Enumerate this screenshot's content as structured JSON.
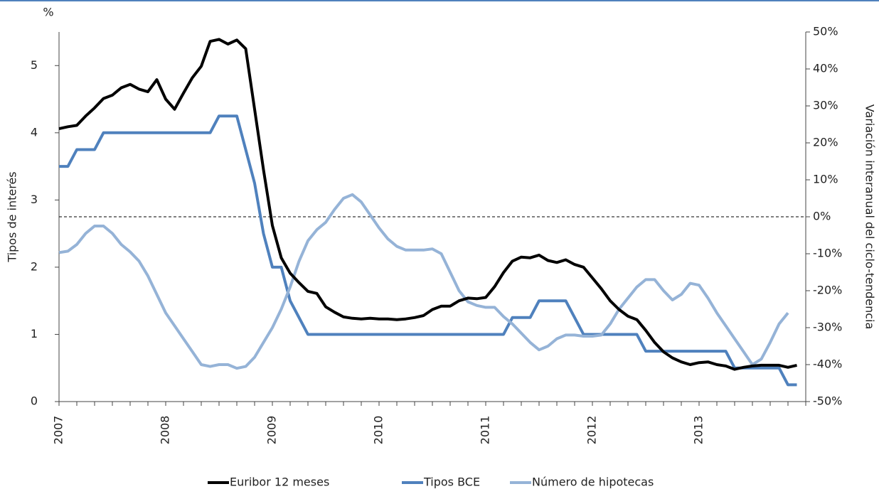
{
  "chart_data": {
    "type": "line",
    "y_unit": "%",
    "y_label": "Tipos de interés",
    "y2_label": "Variación interanual del ciclo-tendencia",
    "categories": [
      "2007",
      null,
      null,
      null,
      null,
      null,
      null,
      null,
      null,
      null,
      null,
      null,
      "2008",
      null,
      null,
      null,
      null,
      null,
      null,
      null,
      null,
      null,
      null,
      null,
      "2009",
      null,
      null,
      null,
      null,
      null,
      null,
      null,
      null,
      null,
      null,
      null,
      "2010",
      null,
      null,
      null,
      null,
      null,
      null,
      null,
      null,
      null,
      null,
      null,
      "2011",
      null,
      null,
      null,
      null,
      null,
      null,
      null,
      null,
      null,
      null,
      null,
      "2012",
      null,
      null,
      null,
      null,
      null,
      null,
      null,
      null,
      null,
      null,
      null,
      "2013",
      null,
      null,
      null,
      null,
      null,
      null,
      null,
      null,
      null,
      null,
      null
    ],
    "ylim": [
      0,
      5.5
    ],
    "yticks": [
      0,
      1,
      2,
      3,
      4,
      5
    ],
    "y2lim": [
      -50,
      50
    ],
    "y2ticks": [
      {
        "value": -50,
        "label": "-50%"
      },
      {
        "value": -40,
        "label": "-40%"
      },
      {
        "value": -30,
        "label": "-30%"
      },
      {
        "value": -20,
        "label": "-20%"
      },
      {
        "value": -10,
        "label": "-10%"
      },
      {
        "value": 0,
        "label": "0%"
      },
      {
        "value": 10,
        "label": "10%"
      },
      {
        "value": 20,
        "label": "20%"
      },
      {
        "value": 30,
        "label": "30%"
      },
      {
        "value": 40,
        "label": "40%"
      },
      {
        "value": 50,
        "label": "50%"
      }
    ],
    "reference_line": {
      "axis": "y2",
      "value": 0
    },
    "series": [
      {
        "name": "Euribor 12 meses",
        "color": "#000000",
        "values": [
          4.06,
          4.09,
          4.11,
          4.25,
          4.37,
          4.51,
          4.56,
          4.67,
          4.72,
          4.65,
          4.61,
          4.79,
          4.5,
          4.35,
          4.59,
          4.82,
          4.99,
          5.36,
          5.39,
          5.32,
          5.38,
          5.25,
          4.35,
          3.45,
          2.62,
          2.14,
          1.91,
          1.77,
          1.64,
          1.61,
          1.41,
          1.33,
          1.26,
          1.24,
          1.23,
          1.24,
          1.23,
          1.23,
          1.22,
          1.23,
          1.25,
          1.28,
          1.37,
          1.42,
          1.42,
          1.5,
          1.54,
          1.53,
          1.55,
          1.71,
          1.92,
          2.09,
          2.15,
          2.14,
          2.18,
          2.1,
          2.07,
          2.11,
          2.04,
          2.0,
          1.84,
          1.68,
          1.5,
          1.37,
          1.27,
          1.22,
          1.06,
          0.88,
          0.74,
          0.65,
          0.59,
          0.55,
          0.58,
          0.59,
          0.55,
          0.53,
          0.48,
          0.51,
          0.53,
          0.54,
          0.54,
          0.54,
          0.51,
          0.54
        ]
      },
      {
        "name": "Tipos BCE",
        "color": "#4f81bd",
        "values": [
          3.5,
          3.5,
          3.75,
          3.75,
          3.75,
          4,
          4,
          4,
          4,
          4,
          4,
          4,
          4,
          4,
          4,
          4,
          4,
          4,
          4.25,
          4.25,
          4.25,
          3.75,
          3.25,
          2.5,
          2,
          2,
          1.5,
          1.25,
          1,
          1,
          1,
          1,
          1,
          1,
          1,
          1,
          1,
          1,
          1,
          1,
          1,
          1,
          1,
          1,
          1,
          1,
          1,
          1,
          1,
          1,
          1,
          1.25,
          1.25,
          1.25,
          1.5,
          1.5,
          1.5,
          1.5,
          1.25,
          1,
          1,
          1,
          1,
          1,
          1,
          1,
          0.75,
          0.75,
          0.75,
          0.75,
          0.75,
          0.75,
          0.75,
          0.75,
          0.75,
          0.75,
          0.5,
          0.5,
          0.5,
          0.5,
          0.5,
          0.5,
          0.25,
          0.25
        ]
      },
      {
        "name": "Número de hipotecas",
        "color": "#95b3d7",
        "axis": "y2",
        "values": [
          -9.7,
          -9.3,
          -7.5,
          -4.5,
          -2.5,
          -2.5,
          -4.5,
          -7.5,
          -9.5,
          -12,
          -16,
          -21,
          -26,
          -29.5,
          -33,
          -36.5,
          -40,
          -40.5,
          -40,
          -40,
          -41,
          -40.5,
          -38,
          -34,
          -30,
          -25,
          -19,
          -12,
          -6.5,
          -3.5,
          -1.5,
          2,
          5,
          6,
          4,
          0.5,
          -3,
          -6,
          -8,
          -9,
          -9,
          -9,
          -8.7,
          -10,
          -15,
          -20,
          -23,
          -24,
          -24.5,
          -24.5,
          -27,
          -29,
          -31.5,
          -34,
          -36,
          -35,
          -33,
          -32,
          -32,
          -32.3,
          -32.3,
          -32,
          -29,
          -25,
          -22,
          -19,
          -17,
          -17,
          -20,
          -22.5,
          -21,
          -18,
          -18.5,
          -22,
          -26,
          -29.5,
          -33,
          -36.5,
          -40,
          -38.5,
          -34,
          -29,
          -26,
          null
        ]
      }
    ]
  }
}
